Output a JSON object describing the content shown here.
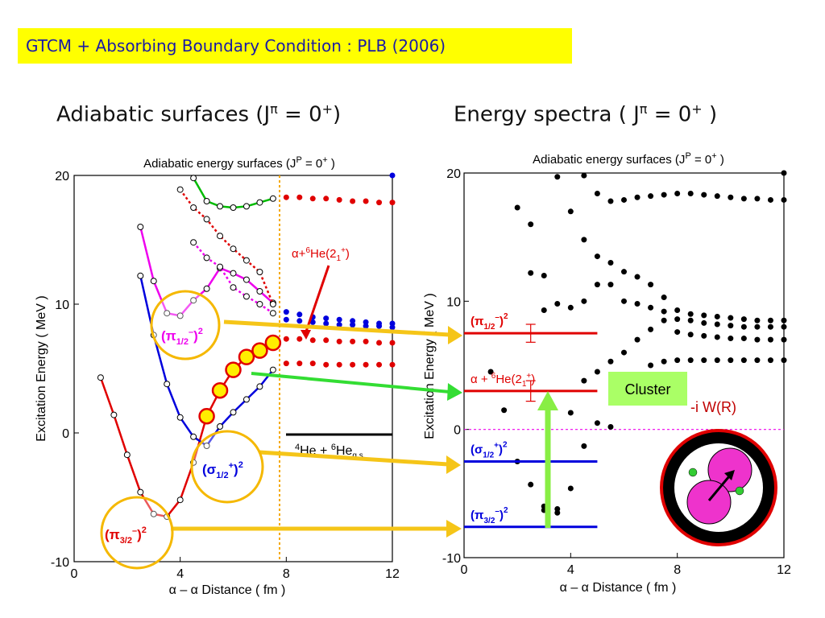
{
  "banner": "GTCM + Absorbing Boundary Condition : PLB (2006)",
  "left_heading": {
    "text": "Adiabatic surfaces (J",
    "pi": "π",
    "eq": " = 0",
    "sup": "+",
    "close": ")"
  },
  "right_heading": {
    "text": "Energy spectra ( J",
    "pi": "π",
    "eq": " = 0",
    "sup": "+",
    "close": " )"
  },
  "chart_data": [
    {
      "type": "scatter",
      "title": "Adiabatic energy surfaces (J",
      "title_sup": "P",
      "title_rest": " = 0",
      "title_sup2": "+",
      "title_close": " )",
      "xlabel": "α – α  Distance ( fm )",
      "ylabel": "Excitation Energy ( MeV )",
      "xlim": [
        0,
        12
      ],
      "ylim": [
        -10,
        20
      ],
      "xticks": [
        "0",
        "4",
        "8",
        "12"
      ],
      "yticks": [
        "-10",
        "0",
        "10",
        "20"
      ],
      "vline_x": 7.8,
      "threshold": {
        "y": 0,
        "x_range": [
          8,
          12
        ],
        "label": "He + He",
        "sup1": "4",
        "sup2": "6",
        "sub": "g.s."
      },
      "annotation_alpha_he": {
        "text": "α+",
        "sup": "6",
        "text2": "He(2",
        "sub": "1",
        "sup2": "+",
        "close": ")"
      },
      "series": [
        {
          "color": "#e00000",
          "x": [
            1.0,
            1.5,
            2.0,
            2.5,
            3.0,
            3.5,
            4.0,
            4.5,
            5.0,
            5.5,
            6.0,
            6.5,
            7.0,
            7.5
          ],
          "y": [
            4.3,
            1.4,
            -1.7,
            -4.6,
            -6.3,
            -6.5,
            -5.2,
            -2.3,
            1.3,
            3.3,
            4.9,
            5.9,
            6.4,
            7.0
          ]
        },
        {
          "color": "#0000dd",
          "x": [
            2.5,
            3.0,
            3.5,
            4.0,
            4.5,
            5.0,
            5.5,
            6.0,
            6.5,
            7.0,
            7.5
          ],
          "y": [
            12.2,
            7.6,
            3.8,
            1.2,
            -0.3,
            -1.0,
            0.5,
            1.6,
            2.6,
            3.6,
            4.9
          ]
        },
        {
          "color": "#ee00ee",
          "x": [
            2.5,
            3.0,
            3.5,
            4.0,
            4.5,
            5.0,
            5.5,
            6.0,
            6.5,
            7.0,
            7.5
          ],
          "y": [
            16.0,
            11.8,
            9.3,
            9.1,
            10.3,
            11.2,
            12.8,
            12.4,
            11.9,
            11.0,
            10.1
          ]
        },
        {
          "color": "#e00000",
          "x": [
            4.0,
            4.5,
            5.0,
            5.5,
            6.0,
            6.5,
            7.0,
            7.5
          ],
          "y": [
            18.9,
            17.5,
            16.6,
            15.3,
            14.3,
            13.4,
            12.5,
            10.0
          ]
        },
        {
          "color": "#ee00ee",
          "x": [
            4.5,
            5.0,
            5.5,
            6.0,
            6.5,
            7.0,
            7.5
          ],
          "y": [
            14.8,
            13.6,
            12.9,
            11.3,
            10.6,
            10.0,
            9.3
          ]
        },
        {
          "color": "#00bb00",
          "x": [
            4.5,
            5.0,
            5.5,
            6.0,
            6.5,
            7.0,
            7.5
          ],
          "y": [
            19.8,
            18.0,
            17.6,
            17.5,
            17.6,
            17.9,
            18.2
          ]
        }
      ],
      "extrapolated": [
        {
          "color": "#e00000",
          "x": [
            8.0,
            8.5,
            9.0,
            9.5,
            10.0,
            10.5,
            11.0,
            11.5,
            12.0
          ],
          "y": [
            18.3,
            18.3,
            18.2,
            18.2,
            18.1,
            18.0,
            18.0,
            17.9,
            17.9
          ]
        },
        {
          "color": "#0000dd",
          "x": [
            8.0,
            8.5,
            9.0,
            9.5,
            10.0,
            10.5,
            11.0,
            11.5,
            12.0
          ],
          "y": [
            9.4,
            9.2,
            9.0,
            8.9,
            8.8,
            8.7,
            8.6,
            8.5,
            8.5
          ]
        },
        {
          "color": "#0000dd",
          "x": [
            8.0,
            8.5,
            9.0,
            9.5,
            10.0,
            10.5,
            11.0,
            11.5,
            12.0
          ],
          "y": [
            8.8,
            8.7,
            8.6,
            8.5,
            8.4,
            8.4,
            8.3,
            8.3,
            8.2
          ]
        },
        {
          "color": "#e00000",
          "x": [
            8.0,
            8.5,
            9.0,
            9.5,
            10.0,
            10.5,
            11.0,
            11.5,
            12.0
          ],
          "y": [
            7.3,
            7.3,
            7.2,
            7.2,
            7.1,
            7.1,
            7.1,
            7.0,
            7.0
          ]
        },
        {
          "color": "#e00000",
          "x": [
            8.0,
            8.5,
            9.0,
            9.5,
            10.0,
            10.5,
            11.0,
            11.5,
            12.0
          ],
          "y": [
            5.4,
            5.4,
            5.4,
            5.3,
            5.3,
            5.3,
            5.3,
            5.3,
            5.3
          ]
        }
      ],
      "blue_top_point": {
        "x": 12,
        "y": 20
      },
      "yellow_markers": {
        "x": [
          5.0,
          5.5,
          6.0,
          6.5,
          7.0,
          7.5
        ],
        "y": [
          1.3,
          3.3,
          4.9,
          5.9,
          6.4,
          7.0
        ]
      }
    },
    {
      "type": "scatter",
      "title": "Adiabatic energy surfaces (J",
      "title_sup": "P",
      "title_rest": " = 0",
      "title_sup2": "+",
      "title_close": " )",
      "xlabel": "α – α  Distance ( fm )",
      "ylabel": "Excitation Energy ( MeV )",
      "xlim": [
        0,
        12
      ],
      "ylim": [
        -10,
        20
      ],
      "xticks": [
        "0",
        "4",
        "8",
        "12"
      ],
      "yticks": [
        "-10",
        "0",
        "10",
        "20"
      ],
      "points": [
        [
          1.0,
          4.5
        ],
        [
          1.5,
          1.5
        ],
        [
          2.0,
          17.3
        ],
        [
          2.0,
          -2.5
        ],
        [
          2.5,
          16.0
        ],
        [
          2.5,
          12.2
        ],
        [
          2.5,
          -4.3
        ],
        [
          3.0,
          12.0
        ],
        [
          3.0,
          9.3
        ],
        [
          3.0,
          -6.0
        ],
        [
          3.0,
          -6.3
        ],
        [
          3.5,
          9.8
        ],
        [
          3.5,
          -6.2
        ],
        [
          3.5,
          -6.5
        ],
        [
          3.5,
          19.7
        ],
        [
          4.0,
          17.0
        ],
        [
          4.0,
          9.5
        ],
        [
          4.0,
          1.3
        ],
        [
          4.0,
          -4.6
        ],
        [
          4.5,
          19.8
        ],
        [
          4.5,
          14.8
        ],
        [
          4.5,
          10.0
        ],
        [
          4.5,
          3.8
        ],
        [
          4.5,
          -1.3
        ],
        [
          5.0,
          18.4
        ],
        [
          5.0,
          13.5
        ],
        [
          5.0,
          11.3
        ],
        [
          5.0,
          4.5
        ],
        [
          5.0,
          0.5
        ],
        [
          5.5,
          17.8
        ],
        [
          5.5,
          13.0
        ],
        [
          5.5,
          11.3
        ],
        [
          5.5,
          5.3
        ],
        [
          5.5,
          0.2
        ],
        [
          6.0,
          17.9
        ],
        [
          6.0,
          12.3
        ],
        [
          6.0,
          10.0
        ],
        [
          6.0,
          6.0
        ],
        [
          6.5,
          18.1
        ],
        [
          6.5,
          11.9
        ],
        [
          6.5,
          9.8
        ],
        [
          6.5,
          7.0
        ],
        [
          7.0,
          18.2
        ],
        [
          7.0,
          11.3
        ],
        [
          7.0,
          9.5
        ],
        [
          7.0,
          7.8
        ],
        [
          7.0,
          5.0
        ],
        [
          7.5,
          18.3
        ],
        [
          7.5,
          10.3
        ],
        [
          7.5,
          9.2
        ],
        [
          7.5,
          8.5
        ],
        [
          7.5,
          5.3
        ],
        [
          8.0,
          18.4
        ],
        [
          8.0,
          9.3
        ],
        [
          8.0,
          8.6
        ],
        [
          8.0,
          7.6
        ],
        [
          8.0,
          5.4
        ],
        [
          8.5,
          18.4
        ],
        [
          8.5,
          9.0
        ],
        [
          8.5,
          8.5
        ],
        [
          8.5,
          7.4
        ],
        [
          8.5,
          5.4
        ],
        [
          9.0,
          18.3
        ],
        [
          9.0,
          8.9
        ],
        [
          9.0,
          8.3
        ],
        [
          9.0,
          7.3
        ],
        [
          9.0,
          5.4
        ],
        [
          9.5,
          18.2
        ],
        [
          9.5,
          8.8
        ],
        [
          9.5,
          8.2
        ],
        [
          9.5,
          7.2
        ],
        [
          9.5,
          5.4
        ],
        [
          10.0,
          18.1
        ],
        [
          10.0,
          8.7
        ],
        [
          10.0,
          8.1
        ],
        [
          10.0,
          7.1
        ],
        [
          10.0,
          5.4
        ],
        [
          10.5,
          18.0
        ],
        [
          10.5,
          8.6
        ],
        [
          10.5,
          8.0
        ],
        [
          10.5,
          7.1
        ],
        [
          10.5,
          5.4
        ],
        [
          11.0,
          18.0
        ],
        [
          11.0,
          8.5
        ],
        [
          11.0,
          8.0
        ],
        [
          11.0,
          7.0
        ],
        [
          11.0,
          5.4
        ],
        [
          11.5,
          17.9
        ],
        [
          11.5,
          8.5
        ],
        [
          11.5,
          8.0
        ],
        [
          11.5,
          7.0
        ],
        [
          11.5,
          5.4
        ],
        [
          12.0,
          20.0
        ],
        [
          12.0,
          17.9
        ],
        [
          12.0,
          8.5
        ],
        [
          12.0,
          8.0
        ],
        [
          12.0,
          7.0
        ],
        [
          12.0,
          5.4
        ]
      ],
      "levels": [
        {
          "color": "#e00000",
          "y": 7.5,
          "label": "π",
          "sub": "1/2",
          "sup_in": "–",
          "sup": "2",
          "err": 0.7
        },
        {
          "color": "#e00000",
          "y": 3.0,
          "label": "α  + ",
          "sup": "6",
          "label2": "He(2",
          "sub": "1",
          "sup2": "+",
          "close": ")",
          "err": 0.8
        },
        {
          "color": "#0000dd",
          "y": -2.5,
          "label": "σ",
          "sub": "1/2",
          "sup_in": "+",
          "sup": "2"
        },
        {
          "color": "#0000dd",
          "y": -7.6,
          "label": "π",
          "sub": "3/2",
          "sup_in": "–",
          "sup": "2"
        }
      ],
      "zero_line_y": 0
    }
  ],
  "labels": {
    "pi12": {
      "a": "(π",
      "sub": "1/2",
      "sup_in": "–",
      "b": ")",
      "sup": "2"
    },
    "sigma12": {
      "a": "(σ",
      "sub": "1/2",
      "sup_in": "+",
      "b": ")",
      "sup": "2"
    },
    "pi32": {
      "a": "(π",
      "sub": "3/2",
      "sup_in": "–",
      "b": ")",
      "sup": "2"
    },
    "cluster": "Cluster",
    "absorb": "-i W(R)"
  },
  "colors": {
    "banner_bg": "#ffff00",
    "banner_text": "#1a1aa6",
    "arrow": "#f5c518",
    "green": "#33dd33",
    "red": "#e00000",
    "blue": "#0000dd",
    "magenta": "#ee00ee"
  }
}
